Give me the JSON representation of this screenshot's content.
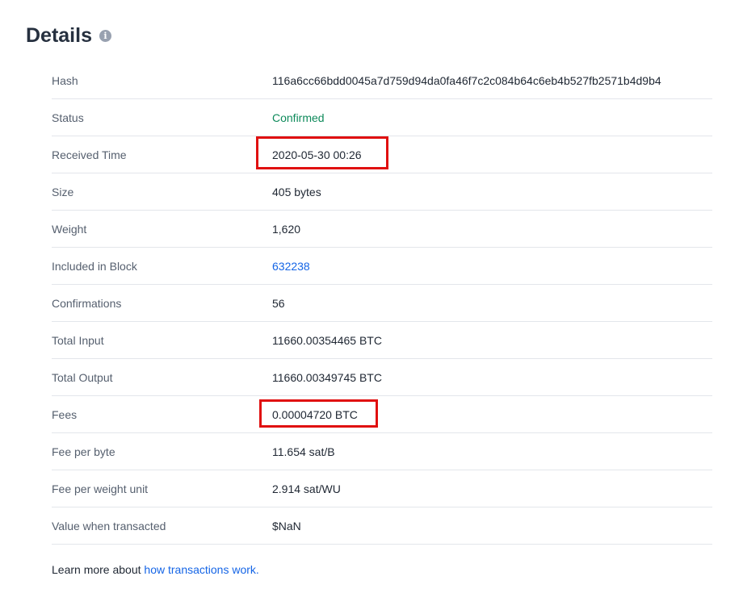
{
  "title": "Details",
  "title_icon": "info-icon",
  "rows": [
    {
      "label": "Hash",
      "value": "116a6cc66bdd0045a7d759d94da0fa46f7c2c084b64c6eb4b527fb2571b4d9b4"
    },
    {
      "label": "Status",
      "value": "Confirmed"
    },
    {
      "label": "Received Time",
      "value": "2020-05-30 00:26"
    },
    {
      "label": "Size",
      "value": "405 bytes"
    },
    {
      "label": "Weight",
      "value": "1,620"
    },
    {
      "label": "Included in Block",
      "value": "632238"
    },
    {
      "label": "Confirmations",
      "value": "56"
    },
    {
      "label": "Total Input",
      "value": "11660.00354465 BTC"
    },
    {
      "label": "Total Output",
      "value": "11660.00349745 BTC"
    },
    {
      "label": "Fees",
      "value": "0.00004720 BTC"
    },
    {
      "label": "Fee per byte",
      "value": "11.654 sat/B"
    },
    {
      "label": "Fee per weight unit",
      "value": "2.914 sat/WU"
    },
    {
      "label": "Value when transacted",
      "value": "$NaN"
    }
  ],
  "footer": {
    "text": "Learn more about ",
    "link": "how transactions work."
  },
  "colors": {
    "status_confirmed": "#0e8a5b",
    "link": "#1565e6",
    "highlight_box": "#e01010"
  }
}
